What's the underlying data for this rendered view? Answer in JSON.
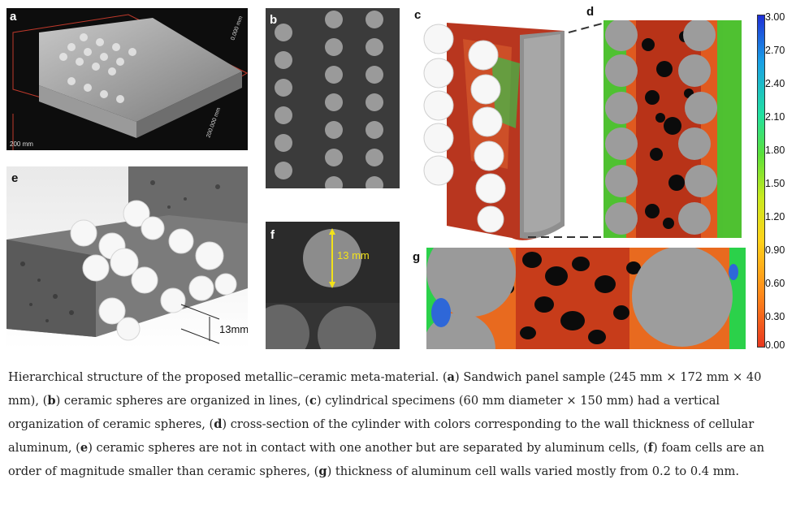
{
  "panels": {
    "a": {
      "label": "a",
      "axis_texts": [
        "200 mm",
        "200.000 mm",
        "0.000 mm"
      ]
    },
    "b": {
      "label": "b"
    },
    "c": {
      "label": "c"
    },
    "d": {
      "label": "d"
    },
    "e": {
      "label": "e",
      "dimension": "13mm"
    },
    "f": {
      "label": "f",
      "dimension": "13 mm"
    },
    "g": {
      "label": "g"
    }
  },
  "colorbar": {
    "ticks": [
      "3.00",
      "2.70",
      "2.40",
      "2.10",
      "1.80",
      "1.50",
      "1.20",
      "0.90",
      "0.60",
      "0.30",
      "0.00"
    ],
    "colors": [
      "#1f2fd6",
      "#1aa0e6",
      "#22e0a0",
      "#5be03a",
      "#c9e91f",
      "#ffd21a",
      "#ff8a1a",
      "#e8381f"
    ]
  },
  "caption": {
    "intro": "Hierarchical structure of the proposed metallic–ceramic meta-material. (",
    "a_label": "a",
    "a_text": ") Sandwich panel sample (245 mm × 172 mm × 40 mm), (",
    "b_label": "b",
    "b_text": ") ceramic spheres are organized in lines, (",
    "c_label": "c",
    "c_text": ") cylindrical specimens (60 mm diameter × 150 mm) had a vertical organization of ceramic spheres, (",
    "d_label": "d",
    "d_text": ") cross-section of the cylinder with colors corresponding to the wall thickness of cellular aluminum, (",
    "e_label": "e",
    "e_text": ") ceramic spheres are not in contact with one another but are separated by aluminum cells, (",
    "f_label": "f",
    "f_text": ") foam cells are an order of magnitude smaller than ceramic spheres, (",
    "g_label": "g",
    "g_text": ") thickness of aluminum cell walls varied mostly from 0.2 to 0.4 mm."
  }
}
